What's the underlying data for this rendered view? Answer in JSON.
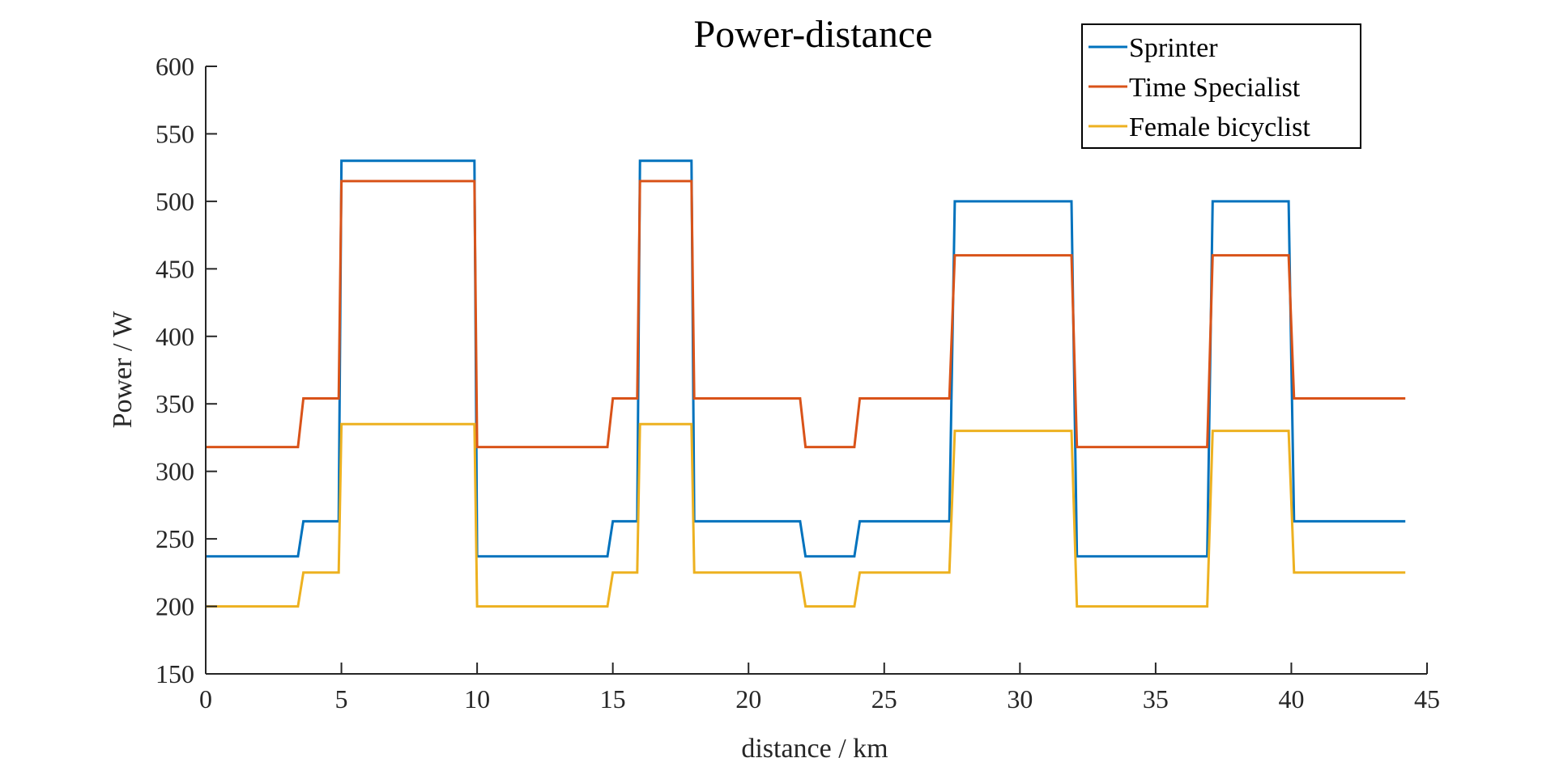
{
  "chart_data": {
    "type": "line",
    "title": "Power-distance",
    "xlabel": "distance / km",
    "ylabel": "Power / W",
    "xlim": [
      0,
      45
    ],
    "ylim": [
      150,
      600
    ],
    "xticks": [
      0,
      5,
      10,
      15,
      20,
      25,
      30,
      35,
      40,
      45
    ],
    "yticks": [
      150,
      200,
      250,
      300,
      350,
      400,
      450,
      500,
      550,
      600
    ],
    "grid": false,
    "legend_position": "top-right",
    "series": [
      {
        "name": "Sprinter",
        "color": "#0072BD",
        "x": [
          0,
          3.4,
          3.6,
          4.9,
          5.0,
          9.9,
          10.0,
          14.8,
          15.0,
          15.9,
          16.0,
          17.9,
          18.0,
          21.9,
          22.1,
          23.9,
          24.1,
          27.4,
          27.6,
          31.9,
          32.1,
          36.9,
          37.1,
          39.9,
          40.1,
          44.2
        ],
        "y": [
          237,
          237,
          263,
          263,
          530,
          530,
          237,
          237,
          263,
          263,
          530,
          530,
          263,
          263,
          237,
          237,
          263,
          263,
          500,
          500,
          237,
          237,
          500,
          500,
          263,
          263
        ]
      },
      {
        "name": "Time Specialist",
        "color": "#D95319",
        "x": [
          0,
          3.4,
          3.6,
          4.9,
          5.0,
          9.9,
          10.0,
          14.8,
          15.0,
          15.9,
          16.0,
          17.9,
          18.0,
          21.9,
          22.1,
          23.9,
          24.1,
          27.4,
          27.6,
          31.9,
          32.1,
          36.9,
          37.1,
          39.9,
          40.1,
          44.2
        ],
        "y": [
          318,
          318,
          354,
          354,
          515,
          515,
          318,
          318,
          354,
          354,
          515,
          515,
          354,
          354,
          318,
          318,
          354,
          354,
          460,
          460,
          318,
          318,
          460,
          460,
          354,
          354
        ]
      },
      {
        "name": "Female bicyclist",
        "color": "#EDB120",
        "x": [
          0,
          3.4,
          3.6,
          4.9,
          5.0,
          9.9,
          10.0,
          14.8,
          15.0,
          15.9,
          16.0,
          17.9,
          18.0,
          21.9,
          22.1,
          23.9,
          24.1,
          27.4,
          27.6,
          31.9,
          32.1,
          36.9,
          37.1,
          39.9,
          40.1,
          44.2
        ],
        "y": [
          200,
          200,
          225,
          225,
          335,
          335,
          200,
          200,
          225,
          225,
          335,
          335,
          225,
          225,
          200,
          200,
          225,
          225,
          330,
          330,
          200,
          200,
          330,
          330,
          225,
          225
        ]
      }
    ]
  }
}
